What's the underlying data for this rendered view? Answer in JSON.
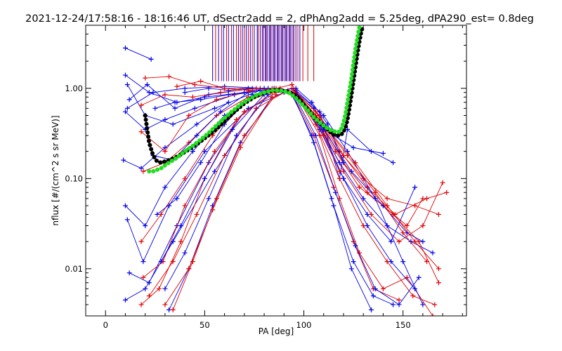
{
  "chart_data": {
    "type": "line",
    "title": "2021-12-24/17:58:16 - 18:16:46 UT, dSectr2add = 2, dPhAng2add = 5.25deg, dPA290_est=    0.8deg",
    "xlabel": "PA [deg]",
    "ylabel": "nflux [#/(cm^2 s sr MeV)]",
    "xlim": [
      -10,
      182
    ],
    "ylim": [
      0.003,
      5
    ],
    "yscale": "log",
    "grid": false,
    "x_ticks": [
      {
        "value": 0,
        "label": "0"
      },
      {
        "value": 50,
        "label": "50"
      },
      {
        "value": 100,
        "label": "100"
      },
      {
        "value": 150,
        "label": "150"
      }
    ],
    "y_ticks": [
      {
        "value": 0.01,
        "label": "0.01"
      },
      {
        "value": 0.1,
        "label": "0.10"
      },
      {
        "value": 1,
        "label": "1.00"
      }
    ],
    "colors": {
      "red_series": "#e00000",
      "blue_series": "#0000e6",
      "black_fit": "#000000",
      "green_fit": "#22dd22"
    },
    "vertical_lines": {
      "top_value": 5,
      "bottom_value": 1.2,
      "blue": [
        54,
        57,
        59.5,
        62,
        64.5,
        67,
        69,
        71,
        73,
        75,
        76.5,
        78,
        79.5,
        80.5,
        81.5,
        82.5,
        83.5,
        84.5,
        85.5,
        86.5,
        87.5,
        88.5,
        89.5,
        90.5,
        91.5,
        92.5,
        93.5,
        94.5,
        96,
        98
      ],
      "red": [
        55.5,
        58.5,
        61,
        63.5,
        66,
        68,
        70,
        72,
        74,
        77,
        79,
        81,
        83,
        85,
        87,
        89,
        91,
        93,
        95,
        97,
        99.5,
        102,
        105
      ]
    },
    "series": [
      {
        "x": [
          10,
          23
        ],
        "y": [
          2.8,
          2.1
        ],
        "color": "blue"
      },
      {
        "x": [
          10,
          22,
          36,
          50,
          70
        ],
        "y": [
          1.4,
          0.9,
          0.7,
          0.8,
          0.9
        ],
        "color": "blue"
      },
      {
        "x": [
          11,
          20,
          34,
          55,
          78
        ],
        "y": [
          1.1,
          0.5,
          0.4,
          0.6,
          0.95
        ],
        "color": "blue"
      },
      {
        "x": [
          12,
          21,
          35,
          52,
          74
        ],
        "y": [
          0.75,
          1.1,
          0.6,
          0.85,
          1.0
        ],
        "color": "blue"
      },
      {
        "x": [
          10,
          20,
          30,
          45,
          65,
          85
        ],
        "y": [
          0.55,
          0.35,
          0.45,
          0.6,
          0.85,
          1.0
        ],
        "color": "blue"
      },
      {
        "x": [
          11,
          24,
          40,
          60,
          80
        ],
        "y": [
          0.6,
          0.9,
          1.0,
          1.05,
          1.0
        ],
        "color": "blue"
      },
      {
        "x": [
          9,
          18,
          30,
          46,
          62
        ],
        "y": [
          0.16,
          0.13,
          0.22,
          0.4,
          0.7
        ],
        "color": "blue"
      },
      {
        "x": [
          10,
          20,
          30,
          44,
          60,
          80
        ],
        "y": [
          0.05,
          0.03,
          0.08,
          0.2,
          0.5,
          0.9
        ],
        "color": "blue"
      },
      {
        "x": [
          11,
          19,
          32,
          50,
          72,
          90
        ],
        "y": [
          0.035,
          0.012,
          0.05,
          0.2,
          0.6,
          0.9
        ],
        "color": "blue"
      },
      {
        "x": [
          12,
          22,
          36,
          52,
          70
        ],
        "y": [
          0.009,
          0.007,
          0.03,
          0.15,
          0.55
        ],
        "color": "blue"
      },
      {
        "x": [
          10,
          20,
          34,
          55,
          76
        ],
        "y": [
          0.0045,
          0.006,
          0.02,
          0.12,
          0.6
        ],
        "color": "blue"
      },
      {
        "x": [
          20,
          32,
          45,
          60,
          78
        ],
        "y": [
          1.3,
          1.35,
          1.1,
          1.0,
          1.0
        ],
        "color": "red"
      },
      {
        "x": [
          18,
          30,
          44,
          58,
          76
        ],
        "y": [
          0.65,
          0.85,
          0.8,
          0.9,
          1.0
        ],
        "color": "red"
      },
      {
        "x": [
          18,
          30,
          42,
          56,
          74
        ],
        "y": [
          0.33,
          0.2,
          0.5,
          0.75,
          0.95
        ],
        "color": "red"
      },
      {
        "x": [
          19,
          30,
          42,
          56,
          72,
          88
        ],
        "y": [
          0.12,
          0.15,
          0.25,
          0.5,
          0.8,
          1.0
        ],
        "color": "red"
      },
      {
        "x": [
          18,
          28,
          40,
          54,
          70,
          86
        ],
        "y": [
          0.02,
          0.04,
          0.1,
          0.3,
          0.7,
          0.95
        ],
        "color": "red"
      },
      {
        "x": [
          19,
          29,
          40,
          55,
          70,
          86
        ],
        "y": [
          0.008,
          0.012,
          0.05,
          0.2,
          0.55,
          0.9
        ],
        "color": "red"
      },
      {
        "x": [
          18,
          27,
          38,
          50,
          66,
          84
        ],
        "y": [
          0.004,
          0.006,
          0.02,
          0.1,
          0.45,
          0.9
        ],
        "color": "red"
      },
      {
        "x": [
          22,
          34,
          46,
          60,
          76,
          92
        ],
        "y": [
          0.005,
          0.012,
          0.04,
          0.18,
          0.6,
          0.95
        ],
        "color": "red"
      },
      {
        "x": [
          25,
          35,
          48,
          62,
          78
        ],
        "y": [
          0.6,
          0.7,
          0.75,
          0.85,
          0.95
        ],
        "color": "blue"
      },
      {
        "x": [
          28,
          38,
          50,
          64,
          80
        ],
        "y": [
          0.012,
          0.03,
          0.1,
          0.35,
          0.85
        ],
        "color": "blue"
      },
      {
        "x": [
          30,
          40,
          52,
          66,
          82
        ],
        "y": [
          0.006,
          0.015,
          0.06,
          0.3,
          0.85
        ],
        "color": "blue"
      },
      {
        "x": [
          32,
          42,
          54,
          68,
          84
        ],
        "y": [
          0.0035,
          0.01,
          0.05,
          0.25,
          0.8
        ],
        "color": "blue"
      },
      {
        "x": [
          30,
          42,
          54,
          68,
          84
        ],
        "y": [
          0.004,
          0.01,
          0.045,
          0.22,
          0.8
        ],
        "color": "red"
      },
      {
        "x": [
          34,
          44,
          56,
          70,
          86
        ],
        "y": [
          0.0035,
          0.012,
          0.06,
          0.3,
          0.85
        ],
        "color": "red"
      },
      {
        "x": [
          26,
          36,
          48,
          60,
          74
        ],
        "y": [
          0.04,
          0.06,
          0.15,
          0.4,
          0.85
        ],
        "color": "blue"
      },
      {
        "x": [
          24,
          34,
          46,
          58,
          72
        ],
        "y": [
          0.18,
          0.16,
          0.3,
          0.55,
          0.9
        ],
        "color": "blue"
      },
      {
        "x": [
          40,
          52,
          62,
          72,
          82
        ],
        "y": [
          0.9,
          1.0,
          0.95,
          1.0,
          1.0
        ],
        "color": "blue"
      },
      {
        "x": [
          36,
          48,
          60,
          72,
          84
        ],
        "y": [
          1.05,
          1.2,
          1.0,
          0.95,
          1.0
        ],
        "color": "red"
      },
      {
        "x": [
          95,
          105,
          115,
          125,
          140
        ],
        "y": [
          0.9,
          0.6,
          0.3,
          0.22,
          0.19
        ],
        "color": "blue"
      },
      {
        "x": [
          95,
          108,
          118,
          122,
          134,
          145
        ],
        "y": [
          0.95,
          0.55,
          0.1,
          0.35,
          0.2,
          0.15
        ],
        "color": "blue"
      },
      {
        "x": [
          96,
          106,
          116,
          128,
          140,
          152,
          160
        ],
        "y": [
          0.9,
          0.5,
          0.2,
          0.08,
          0.05,
          0.03,
          0.06
        ],
        "color": "red"
      },
      {
        "x": [
          95,
          108,
          120,
          132,
          145,
          158,
          168
        ],
        "y": [
          0.95,
          0.45,
          0.15,
          0.07,
          0.04,
          0.02,
          0.007
        ],
        "color": "red"
      },
      {
        "x": [
          94,
          106,
          118,
          130,
          142,
          156,
          168
        ],
        "y": [
          1.0,
          0.55,
          0.2,
          0.1,
          0.06,
          0.05,
          0.04
        ],
        "color": "red"
      },
      {
        "x": [
          96,
          108,
          120,
          134,
          148,
          160,
          170
        ],
        "y": [
          0.9,
          0.4,
          0.12,
          0.04,
          0.02,
          0.03,
          0.09
        ],
        "color": "red"
      },
      {
        "x": [
          96,
          108,
          120,
          132,
          146,
          162,
          172
        ],
        "y": [
          0.9,
          0.5,
          0.18,
          0.08,
          0.04,
          0.06,
          0.07
        ],
        "color": "red"
      },
      {
        "x": [
          95,
          106,
          118,
          130,
          142,
          155,
          166
        ],
        "y": [
          0.9,
          0.4,
          0.1,
          0.03,
          0.012,
          0.005,
          0.004
        ],
        "color": "red"
      },
      {
        "x": [
          96,
          108,
          118,
          128,
          140,
          152,
          165
        ],
        "y": [
          0.85,
          0.3,
          0.06,
          0.015,
          0.006,
          0.008,
          0.003
        ],
        "color": "red"
      },
      {
        "x": [
          95,
          105,
          115,
          125,
          135,
          148
        ],
        "y": [
          0.8,
          0.3,
          0.08,
          0.02,
          0.006,
          0.0045
        ],
        "color": "red"
      },
      {
        "x": [
          95,
          106,
          118,
          130,
          142,
          154,
          165
        ],
        "y": [
          0.9,
          0.45,
          0.15,
          0.06,
          0.03,
          0.02,
          0.015
        ],
        "color": "blue"
      },
      {
        "x": [
          95,
          108,
          120,
          132,
          144,
          156
        ],
        "y": [
          0.9,
          0.4,
          0.1,
          0.04,
          0.02,
          0.08
        ],
        "color": "blue"
      },
      {
        "x": [
          96,
          108,
          120,
          132,
          144,
          156
        ],
        "y": [
          0.9,
          0.35,
          0.1,
          0.03,
          0.012,
          0.006
        ],
        "color": "blue"
      },
      {
        "x": [
          95,
          106,
          116,
          126,
          136,
          148,
          158
        ],
        "y": [
          0.85,
          0.3,
          0.07,
          0.018,
          0.006,
          0.004,
          0.008
        ],
        "color": "blue"
      },
      {
        "x": [
          95,
          105,
          115,
          125,
          135,
          145
        ],
        "y": [
          0.8,
          0.25,
          0.05,
          0.012,
          0.005,
          0.004
        ],
        "color": "blue"
      },
      {
        "x": [
          94,
          104,
          114,
          124,
          134
        ],
        "y": [
          0.85,
          0.3,
          0.06,
          0.01,
          0.0035
        ],
        "color": "blue"
      },
      {
        "x": [
          96,
          110,
          124,
          140,
          152,
          160
        ],
        "y": [
          0.9,
          0.35,
          0.12,
          0.05,
          0.025,
          0.02
        ],
        "color": "blue"
      },
      {
        "x": [
          96,
          110,
          122,
          136,
          150,
          160
        ],
        "y": [
          0.95,
          0.5,
          0.2,
          0.06,
          0.012,
          0.004
        ],
        "color": "blue"
      },
      {
        "x": [
          95,
          108,
          122,
          136,
          150,
          162
        ],
        "y": [
          0.9,
          0.45,
          0.18,
          0.07,
          0.025,
          0.012
        ],
        "color": "red"
      },
      {
        "x": [
          95,
          110,
          126,
          142,
          156,
          168
        ],
        "y": [
          0.9,
          0.4,
          0.15,
          0.05,
          0.02,
          0.01
        ],
        "color": "red"
      },
      {
        "x": [
          88,
          96,
          104,
          112,
          120
        ],
        "y": [
          0.95,
          1.0,
          0.7,
          0.4,
          0.15
        ],
        "color": "blue"
      },
      {
        "x": [
          86,
          94,
          102,
          110,
          118
        ],
        "y": [
          1.0,
          1.1,
          0.6,
          0.3,
          0.12
        ],
        "color": "red"
      }
    ],
    "fit_black": {
      "x": [
        20,
        22,
        24,
        26,
        28,
        30,
        32,
        35,
        38,
        42,
        46,
        50,
        55,
        60,
        65,
        70,
        75,
        80,
        85,
        88,
        91,
        94,
        97,
        100,
        103,
        106,
        109,
        112,
        114,
        116,
        118,
        119,
        120,
        121,
        122,
        123,
        124,
        125,
        126,
        127,
        128,
        129,
        130
      ],
      "y": [
        0.5,
        0.25,
        0.18,
        0.155,
        0.15,
        0.155,
        0.16,
        0.17,
        0.185,
        0.21,
        0.24,
        0.28,
        0.34,
        0.43,
        0.55,
        0.68,
        0.8,
        0.9,
        0.95,
        0.95,
        0.93,
        0.88,
        0.78,
        0.66,
        0.55,
        0.46,
        0.4,
        0.35,
        0.32,
        0.3,
        0.3,
        0.31,
        0.33,
        0.37,
        0.45,
        0.6,
        0.85,
        1.2,
        1.7,
        2.4,
        3.3,
        4.3,
        5
      ]
    },
    "fit_green": {
      "x": [
        22,
        24,
        26,
        28,
        30,
        33,
        36,
        40,
        44,
        48,
        52,
        56,
        60,
        64,
        68,
        72,
        76,
        80,
        84,
        87,
        90,
        93,
        96,
        99,
        102,
        105,
        108,
        111,
        114,
        116,
        118,
        119,
        120,
        121,
        122,
        123,
        124,
        125,
        126,
        127,
        128
      ],
      "y": [
        0.12,
        0.12,
        0.125,
        0.13,
        0.14,
        0.155,
        0.17,
        0.2,
        0.23,
        0.27,
        0.32,
        0.39,
        0.47,
        0.56,
        0.66,
        0.75,
        0.84,
        0.9,
        0.95,
        0.95,
        0.93,
        0.88,
        0.78,
        0.67,
        0.57,
        0.48,
        0.42,
        0.37,
        0.34,
        0.33,
        0.33,
        0.36,
        0.42,
        0.52,
        0.7,
        0.95,
        1.3,
        1.9,
        2.7,
        3.6,
        4.8
      ]
    }
  }
}
